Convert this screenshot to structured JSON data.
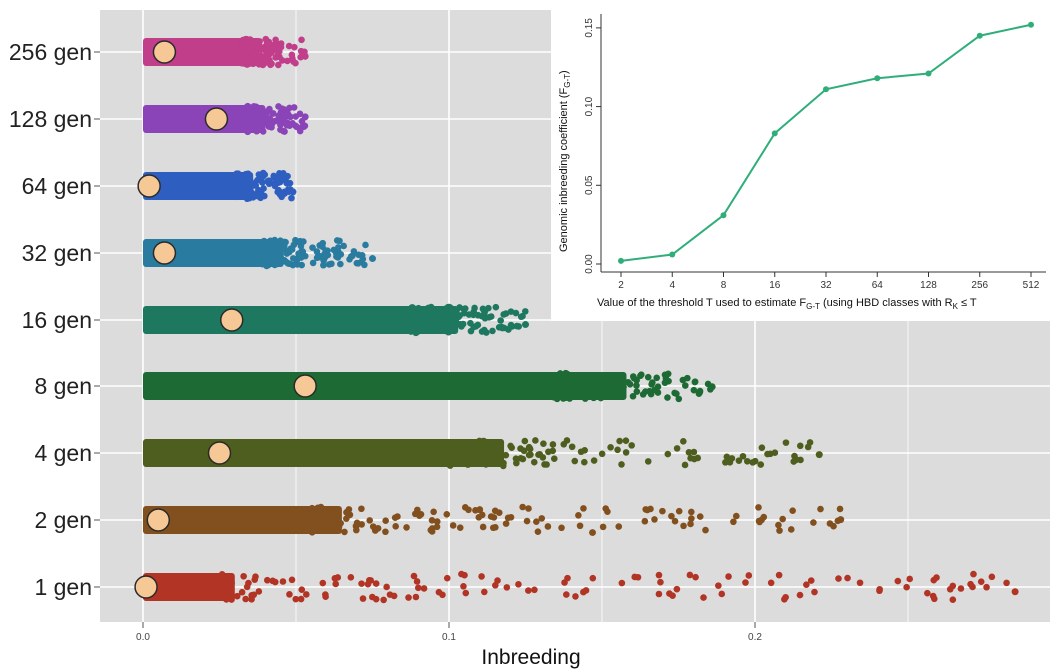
{
  "chart_data": [
    {
      "type": "scatter",
      "title": "",
      "xlabel": "Inbreeding",
      "ylabel": "",
      "xlim": [
        -0.01,
        0.3
      ],
      "x_ticks": [
        0.0,
        0.1,
        0.2
      ],
      "x_tick_labels": [
        "0.0",
        "0.1",
        "0.2"
      ],
      "grid": true,
      "categories": [
        "256 gen",
        "128 gen",
        "64 gen",
        "32 gen",
        "16 gen",
        "8 gen",
        "4 gen",
        "2 gen",
        "1 gen"
      ],
      "series": [
        {
          "category": "256 gen",
          "color": "#c03e8a",
          "mean": 0.007,
          "dense_max": 0.038,
          "max": 0.053
        },
        {
          "category": "128 gen",
          "color": "#8a44b8",
          "mean": 0.024,
          "dense_max": 0.04,
          "max": 0.053
        },
        {
          "category": "64 gen",
          "color": "#2e5fc0",
          "mean": 0.002,
          "dense_max": 0.036,
          "max": 0.049
        },
        {
          "category": "32 gen",
          "color": "#2a7ba0",
          "mean": 0.007,
          "dense_max": 0.046,
          "max": 0.075
        },
        {
          "category": "16 gen",
          "color": "#1e7860",
          "mean": 0.029,
          "dense_max": 0.103,
          "max": 0.125
        },
        {
          "category": "8 gen",
          "color": "#1d6a35",
          "mean": 0.053,
          "dense_max": 0.158,
          "max": 0.186
        },
        {
          "category": "4 gen",
          "color": "#4e5e1e",
          "mean": 0.025,
          "dense_max": 0.118,
          "max": 0.221
        },
        {
          "category": "2 gen",
          "color": "#82501e",
          "mean": 0.005,
          "dense_max": 0.065,
          "max": 0.228
        },
        {
          "category": "1 gen",
          "color": "#b23424",
          "mean": 0.001,
          "dense_max": 0.03,
          "max": 0.285
        }
      ],
      "mean_marker_color": "#f5c896"
    },
    {
      "type": "line",
      "title": "",
      "xlabel": "Value of the threshold T used to estimate F",
      "xlabel_sub": "G-T",
      "xlabel_tail": " (using HBD classes with R",
      "xlabel_sub2": "K",
      "xlabel_end": " ≤  T",
      "ylabel": "Genomic inbreeding coefficient (F",
      "ylabel_sub": "G-T",
      "ylabel_end": ")",
      "categories": [
        "2",
        "4",
        "8",
        "16",
        "32",
        "64",
        "128",
        "256",
        "512"
      ],
      "values": [
        0.002,
        0.006,
        0.031,
        0.083,
        0.111,
        0.118,
        0.121,
        0.145,
        0.152
      ],
      "ylim": [
        0.0,
        0.155
      ],
      "y_ticks": [
        0.0,
        0.05,
        0.1,
        0.15
      ],
      "y_tick_labels": [
        "0.00",
        "0.05",
        "0.10",
        "0.15"
      ],
      "color": "#2fae7a"
    }
  ]
}
